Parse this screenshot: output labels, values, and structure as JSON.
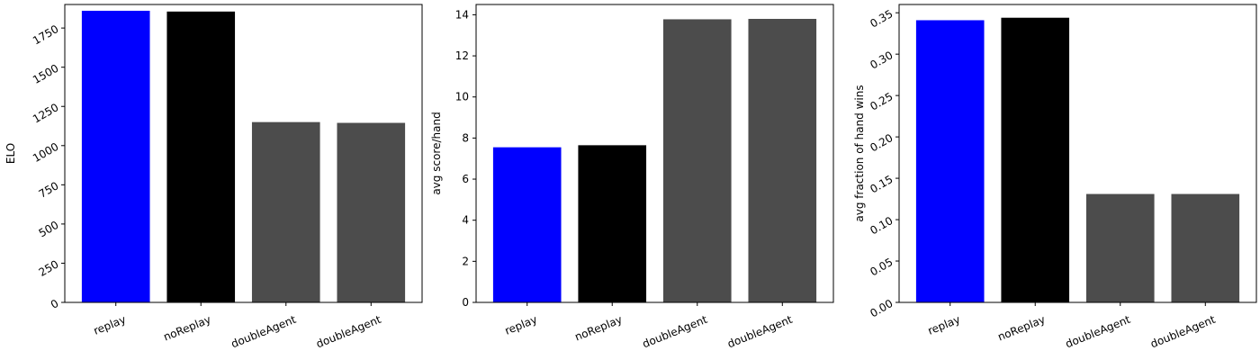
{
  "chart_data": [
    {
      "type": "bar",
      "categories": [
        "replay",
        "noReplay",
        "doubleAgent",
        "doubleAgent"
      ],
      "values": [
        1860,
        1855,
        1150,
        1145
      ],
      "colors": [
        "#0000ff",
        "#000000",
        "#4c4c4c",
        "#4c4c4c"
      ],
      "ylabel": "ELO",
      "ylim": [
        0,
        1900
      ],
      "yticks": [
        0,
        250,
        500,
        750,
        1000,
        1250,
        1500,
        1750
      ],
      "ytick_labels": [
        "0",
        "250",
        "500",
        "750",
        "1000",
        "1250",
        "1500",
        "1750"
      ],
      "ytick_rotation": -30,
      "xtick_rotation": -22,
      "grid": false,
      "legend": "none"
    },
    {
      "type": "bar",
      "categories": [
        "replay",
        "noReplay",
        "doubleAgent",
        "doubleAgent"
      ],
      "values": [
        7.55,
        7.65,
        13.78,
        13.8
      ],
      "colors": [
        "#0000ff",
        "#000000",
        "#4c4c4c",
        "#4c4c4c"
      ],
      "ylabel": "avg score/hand",
      "ylim": [
        0,
        14.5
      ],
      "yticks": [
        0,
        2,
        4,
        6,
        8,
        10,
        12,
        14
      ],
      "ytick_labels": [
        "0",
        "2",
        "4",
        "6",
        "8",
        "10",
        "12",
        "14"
      ],
      "ytick_rotation": 0,
      "xtick_rotation": -22,
      "grid": false,
      "legend": "none"
    },
    {
      "type": "bar",
      "categories": [
        "replay",
        "noReplay",
        "doubleAgent",
        "doubleAgent"
      ],
      "values": [
        0.341,
        0.344,
        0.131,
        0.131
      ],
      "colors": [
        "#0000ff",
        "#000000",
        "#4c4c4c",
        "#4c4c4c"
      ],
      "ylabel": "avg fraction of hand wins",
      "ylim": [
        0,
        0.36
      ],
      "yticks": [
        0,
        0.05,
        0.1,
        0.15,
        0.2,
        0.25,
        0.3,
        0.35
      ],
      "ytick_labels": [
        "0.00",
        "0.05",
        "0.10",
        "0.15",
        "0.20",
        "0.25",
        "0.30",
        "0.35"
      ],
      "ytick_rotation": -30,
      "xtick_rotation": -22,
      "grid": false,
      "legend": "none"
    }
  ]
}
